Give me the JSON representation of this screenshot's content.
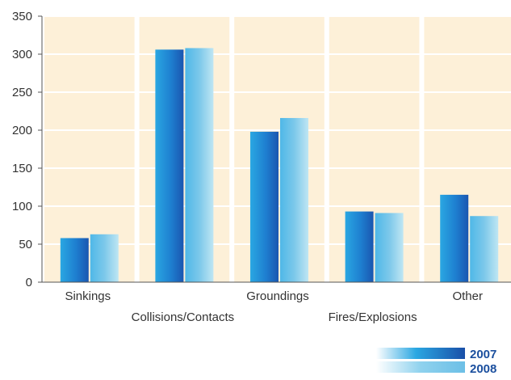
{
  "chart_data": {
    "type": "bar",
    "title": "",
    "xlabel": "",
    "ylabel": "",
    "categories": [
      "Sinkings",
      "Collisions/Contacts",
      "Groundings",
      "Fires/Explosions",
      "Other"
    ],
    "series": [
      {
        "name": "2007",
        "values": [
          58,
          306,
          198,
          93,
          115
        ],
        "color": "#1f78cc"
      },
      {
        "name": "2008",
        "values": [
          63,
          308,
          216,
          91,
          87
        ],
        "color": "#7cc6e6"
      }
    ],
    "ylim": [
      0,
      350
    ],
    "yticks": [
      0,
      50,
      100,
      150,
      200,
      250,
      300,
      350
    ],
    "grid": true,
    "panel_color": "#fdf0d8",
    "legend_position": "bottom-right"
  }
}
